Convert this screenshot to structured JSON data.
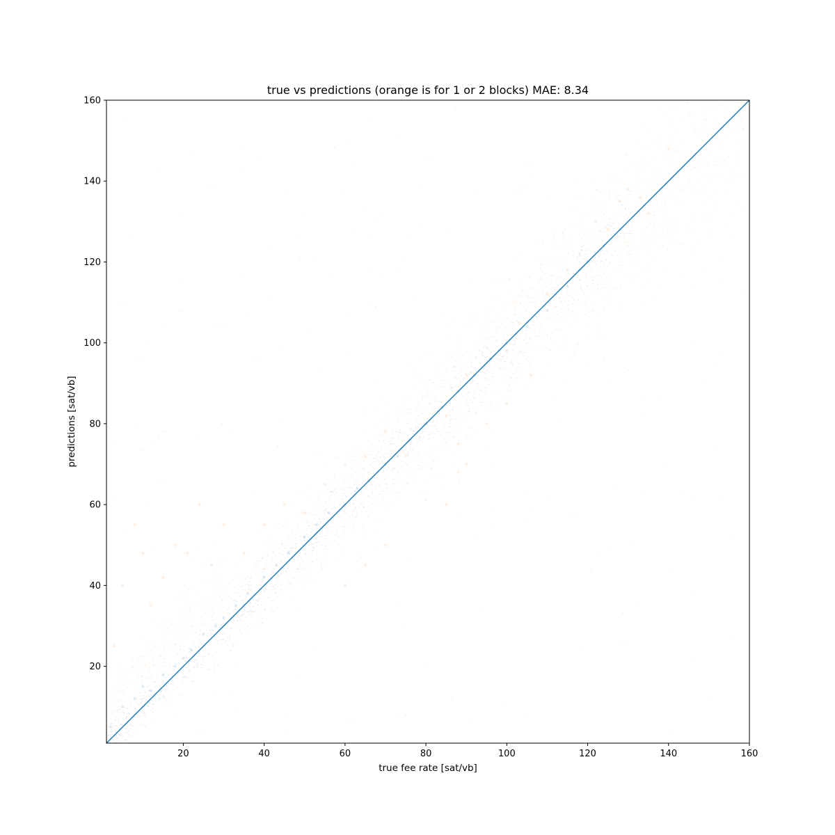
{
  "chart_data": {
    "type": "scatter",
    "title": "true vs predictions (orange is for 1 or 2 blocks) MAE: 8.34",
    "xlabel": "true fee rate [sat/vb]",
    "ylabel": "predictions [sat/vb]",
    "xlim": [
      1,
      160
    ],
    "ylim": [
      1,
      160
    ],
    "xticks": [
      20,
      40,
      60,
      80,
      100,
      120,
      140,
      160
    ],
    "yticks": [
      20,
      40,
      60,
      80,
      100,
      120,
      140,
      160
    ],
    "grid": false,
    "legend": "none",
    "series": [
      {
        "color": "#ff7f0e",
        "marker_alpha": 0.12,
        "points_estimated": [
          [
            3,
            25
          ],
          [
            5,
            40
          ],
          [
            8,
            55
          ],
          [
            10,
            48
          ],
          [
            12,
            35
          ],
          [
            15,
            42
          ],
          [
            18,
            50
          ],
          [
            21,
            48
          ],
          [
            24,
            60
          ],
          [
            27,
            45
          ],
          [
            30,
            55
          ],
          [
            35,
            48
          ],
          [
            40,
            55
          ],
          [
            45,
            60
          ],
          [
            50,
            58
          ],
          [
            55,
            65
          ],
          [
            60,
            70
          ],
          [
            65,
            72
          ],
          [
            70,
            78
          ],
          [
            75,
            72
          ],
          [
            80,
            80
          ],
          [
            85,
            82
          ],
          [
            88,
            75
          ],
          [
            90,
            92
          ],
          [
            95,
            95
          ],
          [
            100,
            98
          ],
          [
            103,
            105
          ],
          [
            106,
            92
          ],
          [
            110,
            112
          ],
          [
            115,
            118
          ],
          [
            118,
            122
          ],
          [
            122,
            130
          ],
          [
            125,
            128
          ],
          [
            128,
            135
          ],
          [
            130,
            138
          ],
          [
            133,
            136
          ],
          [
            135,
            132
          ],
          [
            140,
            148
          ],
          [
            90,
            70
          ],
          [
            88,
            68
          ],
          [
            95,
            80
          ],
          [
            100,
            85
          ],
          [
            65,
            45
          ],
          [
            70,
            50
          ],
          [
            60,
            40
          ],
          [
            85,
            60
          ]
        ]
      },
      {
        "color": "#1f77b4",
        "marker_alpha": 0.15,
        "points_estimated": [
          [
            2,
            5
          ],
          [
            5,
            10
          ],
          [
            8,
            12
          ],
          [
            10,
            15
          ],
          [
            12,
            14
          ],
          [
            15,
            18
          ],
          [
            18,
            20
          ],
          [
            20,
            22
          ],
          [
            22,
            24
          ],
          [
            25,
            28
          ],
          [
            28,
            30
          ],
          [
            30,
            32
          ],
          [
            33,
            35
          ],
          [
            36,
            38
          ],
          [
            40,
            42
          ],
          [
            43,
            45
          ],
          [
            46,
            48
          ],
          [
            50,
            52
          ],
          [
            53,
            55
          ],
          [
            56,
            58
          ],
          [
            60,
            60
          ],
          [
            63,
            64
          ],
          [
            66,
            66
          ],
          [
            70,
            70
          ],
          [
            73,
            72
          ],
          [
            76,
            76
          ],
          [
            80,
            80
          ],
          [
            84,
            84
          ],
          [
            88,
            88
          ],
          [
            92,
            92
          ],
          [
            96,
            96
          ],
          [
            100,
            100
          ],
          [
            105,
            104
          ],
          [
            110,
            108
          ],
          [
            115,
            114
          ],
          [
            118,
            118
          ],
          [
            120,
            120
          ],
          [
            124,
            124
          ],
          [
            128,
            128
          ]
        ]
      }
    ],
    "reference_line": {
      "color": "#1f77b4",
      "x": [
        1,
        160
      ],
      "y": [
        1,
        160
      ]
    }
  }
}
